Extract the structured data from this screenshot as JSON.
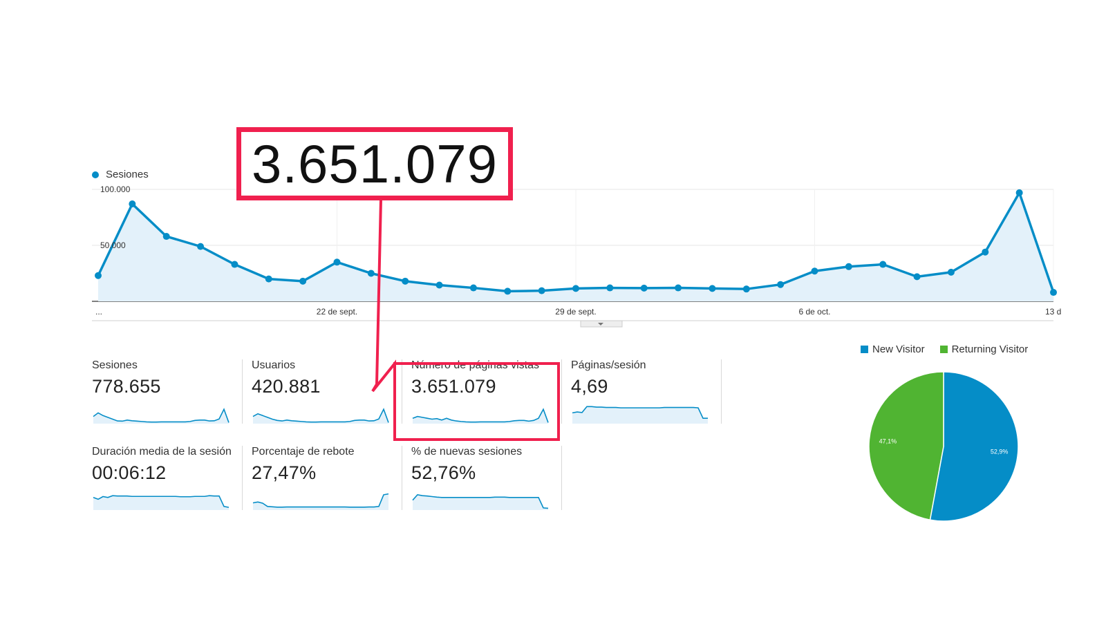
{
  "chart_data": [
    {
      "type": "area",
      "series": [
        {
          "name": "Sesiones",
          "values": [
            23000,
            87000,
            58000,
            49000,
            33000,
            20000,
            18000,
            35000,
            25000,
            18000,
            14500,
            12000,
            9000,
            9500,
            11500,
            12000,
            11800,
            12000,
            11500,
            11000,
            15000,
            27000,
            31000,
            33000,
            22000,
            26000,
            44000,
            97000,
            8000
          ]
        }
      ],
      "x_tick_labels": [
        "...",
        "22 de sept.",
        "29 de sept.",
        "6 de oct.",
        "13 d"
      ],
      "y_tick_labels": [
        "100.000",
        "50.000"
      ],
      "ylim": [
        0,
        100000
      ],
      "grid": true,
      "colors": {
        "line": "#058dc7",
        "fill": "#e3f1fa"
      }
    },
    {
      "type": "pie",
      "categories": [
        "New Visitor",
        "Returning Visitor"
      ],
      "values": [
        52.9,
        47.1
      ],
      "slice_labels": [
        "52,9%",
        "47,1%"
      ],
      "colors": [
        "#058dc7",
        "#50b432"
      ],
      "legend_placement": "top"
    }
  ],
  "series_legend": {
    "label": "Sesiones"
  },
  "metrics": [
    {
      "label": "Sesiones",
      "value": "778.655",
      "spark": [
        40,
        60,
        45,
        35,
        25,
        15,
        14,
        20,
        16,
        14,
        12,
        10,
        9,
        9,
        10,
        10,
        10,
        10,
        10,
        10,
        12,
        18,
        20,
        20,
        15,
        16,
        26,
        80,
        6
      ]
    },
    {
      "label": "Usuarios",
      "value": "420.881",
      "spark": [
        40,
        55,
        45,
        35,
        25,
        18,
        15,
        20,
        16,
        14,
        12,
        10,
        9,
        9,
        10,
        10,
        10,
        10,
        10,
        10,
        12,
        18,
        20,
        20,
        15,
        16,
        26,
        80,
        6
      ]
    },
    {
      "label": "Número de páginas vistas",
      "value": "3.651.079",
      "spark": [
        30,
        40,
        35,
        30,
        25,
        28,
        20,
        30,
        20,
        15,
        12,
        10,
        9,
        9,
        10,
        10,
        10,
        10,
        10,
        10,
        12,
        16,
        18,
        18,
        14,
        18,
        30,
        80,
        6
      ]
    },
    {
      "label": "Páginas/sesión",
      "value": "4,69",
      "spark": [
        60,
        65,
        62,
        95,
        95,
        92,
        92,
        90,
        90,
        90,
        88,
        88,
        88,
        88,
        88,
        88,
        88,
        88,
        88,
        90,
        90,
        90,
        90,
        90,
        90,
        90,
        88,
        30,
        30
      ]
    },
    {
      "label": "Duración media de la sesión",
      "value": "00:06:12",
      "spark": [
        70,
        60,
        75,
        70,
        80,
        78,
        78,
        78,
        76,
        76,
        76,
        76,
        76,
        76,
        76,
        76,
        76,
        76,
        74,
        74,
        74,
        76,
        76,
        76,
        80,
        78,
        78,
        20,
        15
      ]
    },
    {
      "label": "Porcentaje de rebote",
      "value": "27,47%",
      "spark": [
        40,
        45,
        38,
        20,
        18,
        16,
        16,
        17,
        17,
        17,
        17,
        17,
        17,
        17,
        17,
        17,
        17,
        17,
        17,
        17,
        16,
        16,
        16,
        16,
        17,
        17,
        20,
        85,
        90
      ]
    },
    {
      "label": "% de nuevas sesiones",
      "value": "52,76%",
      "spark": [
        55,
        85,
        80,
        78,
        75,
        72,
        70,
        70,
        70,
        70,
        70,
        70,
        70,
        70,
        70,
        70,
        70,
        72,
        72,
        72,
        70,
        70,
        70,
        70,
        70,
        70,
        70,
        12,
        10
      ]
    }
  ],
  "callout": {
    "value": "3.651.079",
    "color": "#f0204e"
  }
}
